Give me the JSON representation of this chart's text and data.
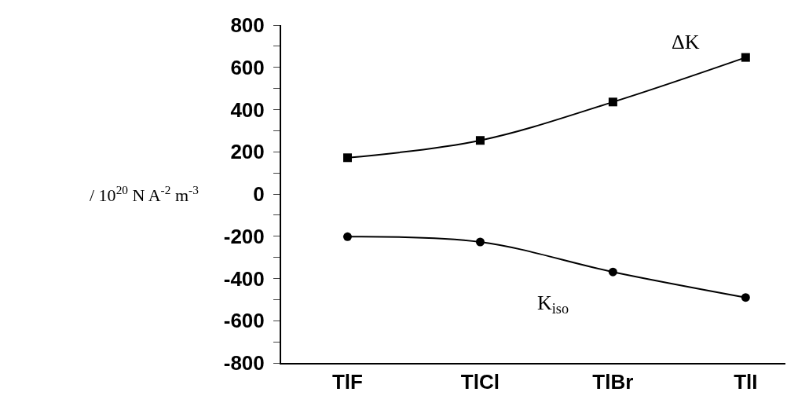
{
  "chart_data": {
    "type": "line",
    "ylabel": "/ 10$^{20}$ N A$^{-2}$ m$^{-3}$",
    "categories": [
      "TlF",
      "TlCl",
      "TlBr",
      "TlI"
    ],
    "series": [
      {
        "name": "ΔK",
        "color": "#000000",
        "marker": "square",
        "values": [
          172,
          254,
          436,
          647
        ]
      },
      {
        "name": "K$_{iso}$",
        "color": "#000000",
        "marker": "circle",
        "values": [
          -202,
          -227,
          -369,
          -490
        ]
      }
    ],
    "ylim": [
      -800,
      800
    ],
    "yticks": [
      -800,
      {
        "value": -700,
        "label": null
      },
      -600,
      {
        "value": -500,
        "label": null
      },
      -400,
      {
        "value": -300,
        "label": null
      },
      -200,
      {
        "value": -100,
        "label": null
      },
      0,
      {
        "value": 100,
        "label": null
      },
      200,
      {
        "value": 300,
        "label": null
      },
      400,
      {
        "value": 500,
        "label": null
      },
      600,
      {
        "value": 700,
        "label": null
      },
      800
    ],
    "line_style": "solid"
  }
}
